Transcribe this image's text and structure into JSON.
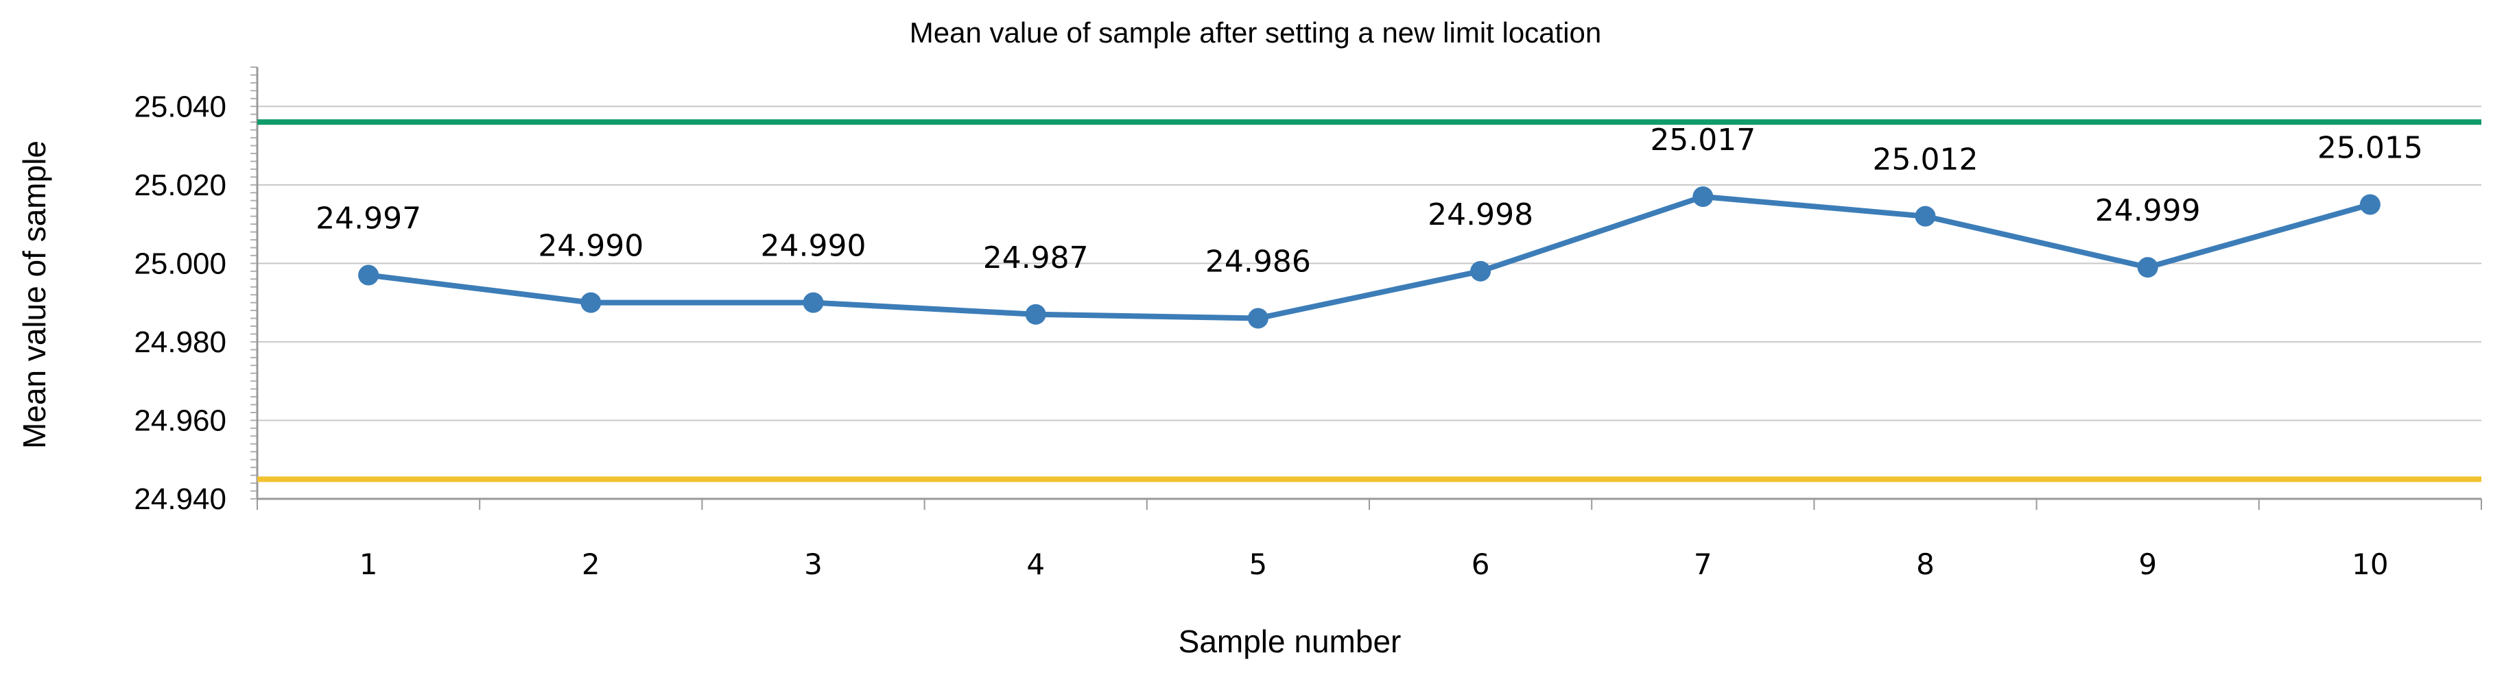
{
  "chart_data": {
    "type": "line",
    "title": "Mean value of sample after setting a new limit location",
    "xlabel": "Sample number",
    "ylabel": "Mean value of sample",
    "categories": [
      "1",
      "2",
      "3",
      "4",
      "5",
      "6",
      "7",
      "8",
      "9",
      "10"
    ],
    "series": [
      {
        "values": [
          24.997,
          24.99,
          24.99,
          24.987,
          24.986,
          24.998,
          25.017,
          25.012,
          24.999,
          25.015
        ],
        "labels": [
          "24.997",
          "24.990",
          "24.990",
          "24.987",
          "24.986",
          "24.998",
          "25.017",
          "25.012",
          "24.999",
          "25.015"
        ],
        "color": "#3C7DB8"
      }
    ],
    "reference_lines": [
      {
        "value": 25.036,
        "color": "#109C6A"
      },
      {
        "value": 24.945,
        "color": "#F2C12E"
      }
    ],
    "yticks": [
      "24.940",
      "24.960",
      "24.980",
      "25.000",
      "25.020",
      "25.040"
    ],
    "ylim": [
      24.94,
      25.05
    ],
    "grid": true,
    "legend": "none"
  }
}
